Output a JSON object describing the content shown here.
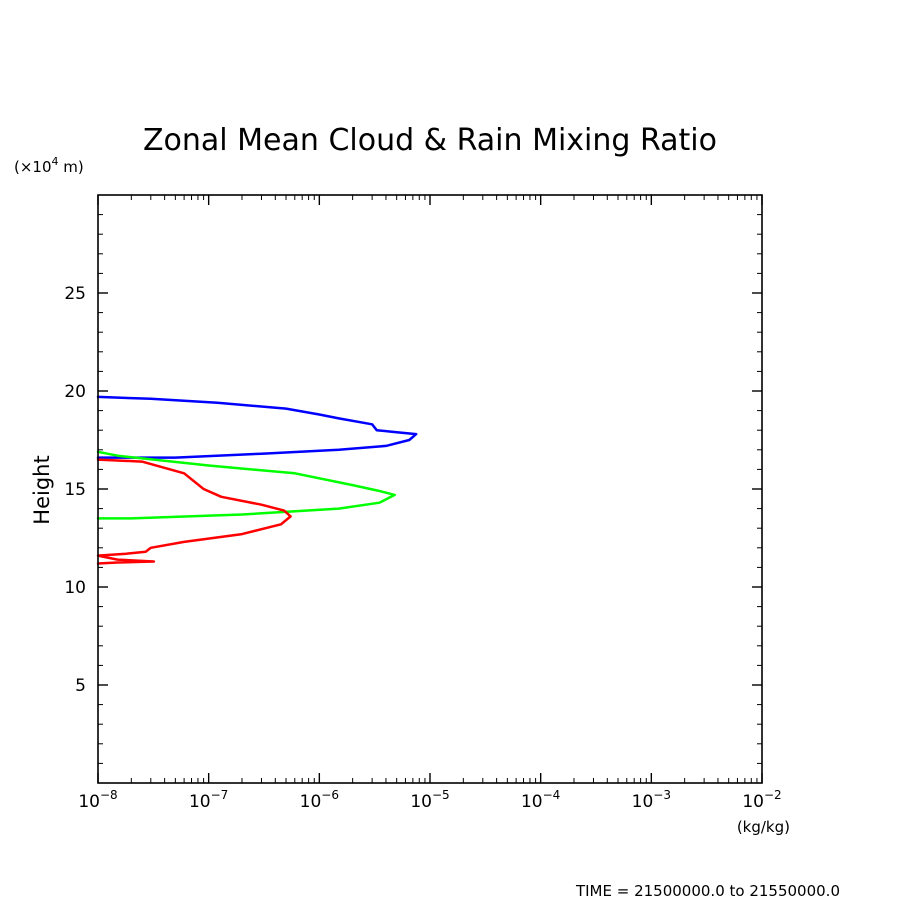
{
  "chart_data": {
    "type": "line",
    "title": "Zonal Mean Cloud & Rain Mixing Ratio",
    "ylabel": "Height",
    "y_unit_label": "(×10",
    "y_unit_exp": "4",
    "y_unit_suffix": " m)",
    "x_unit_label": "(kg/kg)",
    "footer": "TIME = 21500000.0 to 21550000.0",
    "x_scale": "log",
    "xlim": [
      1e-08,
      0.01
    ],
    "ylim": [
      0,
      30
    ],
    "x_ticks": [
      {
        "value": 1e-08,
        "base": "10",
        "exp": "−8"
      },
      {
        "value": 1e-07,
        "base": "10",
        "exp": "−7"
      },
      {
        "value": 1e-06,
        "base": "10",
        "exp": "−6"
      },
      {
        "value": 1e-05,
        "base": "10",
        "exp": "−5"
      },
      {
        "value": 0.0001,
        "base": "10",
        "exp": "−4"
      },
      {
        "value": 0.001,
        "base": "10",
        "exp": "−3"
      },
      {
        "value": 0.01,
        "base": "10",
        "exp": "−2"
      }
    ],
    "y_ticks": [
      {
        "value": 5,
        "label": "5"
      },
      {
        "value": 10,
        "label": "10"
      },
      {
        "value": 15,
        "label": "15"
      },
      {
        "value": 20,
        "label": "20"
      },
      {
        "value": 25,
        "label": "25"
      }
    ],
    "grid": false,
    "series": [
      {
        "color": "#0000ff",
        "points": [
          [
            1e-08,
            19.7
          ],
          [
            3e-08,
            19.6
          ],
          [
            1.2e-07,
            19.4
          ],
          [
            5e-07,
            19.1
          ],
          [
            1e-06,
            18.8
          ],
          [
            1.5e-06,
            18.6
          ],
          [
            3e-06,
            18.3
          ],
          [
            3.3e-06,
            18.0
          ],
          [
            5e-06,
            17.9
          ],
          [
            7.5e-06,
            17.8
          ],
          [
            6.5e-06,
            17.5
          ],
          [
            4e-06,
            17.2
          ],
          [
            1.5e-06,
            17.0
          ],
          [
            3e-07,
            16.8
          ],
          [
            5e-08,
            16.6
          ],
          [
            1e-08,
            16.6
          ]
        ]
      },
      {
        "color": "#00ff00",
        "points": [
          [
            1e-08,
            16.9
          ],
          [
            1.5e-08,
            16.7
          ],
          [
            1e-07,
            16.2
          ],
          [
            6e-07,
            15.8
          ],
          [
            2e-06,
            15.2
          ],
          [
            3.5e-06,
            14.9
          ],
          [
            4.8e-06,
            14.7
          ],
          [
            3.5e-06,
            14.3
          ],
          [
            1.5e-06,
            14.0
          ],
          [
            2e-07,
            13.7
          ],
          [
            2e-08,
            13.5
          ],
          [
            1e-08,
            13.5
          ]
        ]
      },
      {
        "color": "#ff0000",
        "points": [
          [
            1e-08,
            16.5
          ],
          [
            2.5e-08,
            16.4
          ],
          [
            6e-08,
            15.8
          ],
          [
            9e-08,
            15.0
          ],
          [
            1.3e-07,
            14.6
          ],
          [
            3e-07,
            14.2
          ],
          [
            4.8e-07,
            13.9
          ],
          [
            5.5e-07,
            13.6
          ],
          [
            4.5e-07,
            13.2
          ],
          [
            2e-07,
            12.7
          ],
          [
            6e-08,
            12.3
          ],
          [
            3e-08,
            12.0
          ],
          [
            2.7e-08,
            11.8
          ],
          [
            1.8e-08,
            11.7
          ],
          [
            1e-08,
            11.6
          ],
          [
            1.5e-08,
            11.4
          ],
          [
            3.2e-08,
            11.3
          ],
          [
            1.5e-08,
            11.25
          ],
          [
            1e-08,
            11.2
          ]
        ]
      }
    ]
  }
}
